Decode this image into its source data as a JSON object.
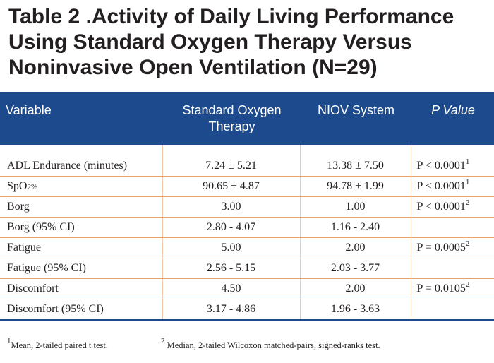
{
  "title": {
    "line1": "Table 2 .Activity of Daily Living Performance",
    "line2": "Using Standard Oxygen Therapy Versus",
    "line3": "Noninvasive Open Ventilation (N=29)"
  },
  "header": {
    "variable": "Variable",
    "standard_line1": "Standard Oxygen",
    "standard_line2": "Therapy",
    "niov": "NIOV System",
    "pvalue": "P Value"
  },
  "rows": [
    {
      "variable": "ADL Endurance (minutes)",
      "standard": "7.24 ± 5.21",
      "niov": "13.38 ± 7.50",
      "p": "P < 0.0001",
      "note": "1"
    },
    {
      "variable_main": "SpO",
      "variable_sub": "2%",
      "standard": "90.65 ± 4.87",
      "niov": "94.78 ± 1.99",
      "p": "P < 0.0001",
      "note": "1"
    },
    {
      "variable": "Borg",
      "standard": "3.00",
      "niov": "1.00",
      "p": "P < 0.0001",
      "note": "2"
    },
    {
      "variable": "Borg (95% CI)",
      "standard": "2.80 - 4.07",
      "niov": "1.16 - 2.40",
      "p": "",
      "note": ""
    },
    {
      "variable": "Fatigue",
      "standard": "5.00",
      "niov": "2.00",
      "p": "P = 0.0005",
      "note": "2"
    },
    {
      "variable": "Fatigue (95% CI)",
      "standard": "2.56 - 5.15",
      "niov": "2.03 - 3.77",
      "p": "",
      "note": ""
    },
    {
      "variable": "Discomfort",
      "standard": "4.50",
      "niov": "2.00",
      "p": "P = 0.0105",
      "note": "2"
    },
    {
      "variable": "Discomfort (95% CI)",
      "standard": "3.17 - 4.86",
      "niov": "1.96 - 3.63",
      "p": "",
      "note": ""
    }
  ],
  "footnotes": {
    "fn1_mark": "1",
    "fn1_text": "Mean, 2-tailed paired t test.",
    "fn2_mark": "2",
    "fn2_text": "Median, 2-tailed Wilcoxon matched-pairs, signed-ranks test."
  },
  "colors": {
    "header_bg": "#1d4a8c",
    "row_rule": "#e8a36c",
    "text": "#231f20"
  }
}
